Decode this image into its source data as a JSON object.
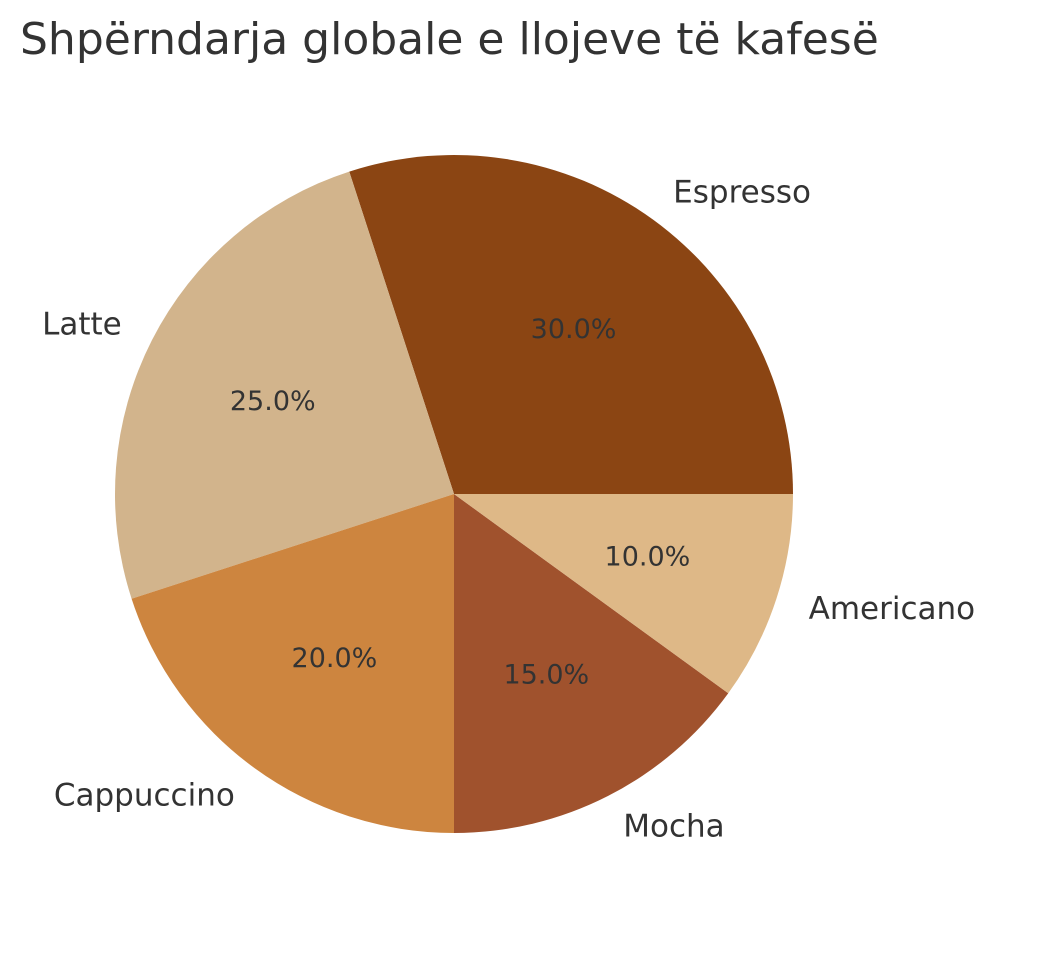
{
  "chart_data": {
    "type": "pie",
    "title": "Shpërndarja globale e llojeve të kafesë",
    "categories": [
      "Espresso",
      "Latte",
      "Cappuccino",
      "Mocha",
      "Americano"
    ],
    "values": [
      30.0,
      25.0,
      20.0,
      15.0,
      10.0
    ],
    "percent_labels": [
      "30.0%",
      "25.0%",
      "20.0%",
      "15.0%",
      "10.0%"
    ],
    "colors": [
      "#8B4513",
      "#D2B48C",
      "#CD853F",
      "#A0522D",
      "#DEB887"
    ],
    "start_angle_deg": 0,
    "direction": "counterclockwise",
    "legend": "none"
  }
}
